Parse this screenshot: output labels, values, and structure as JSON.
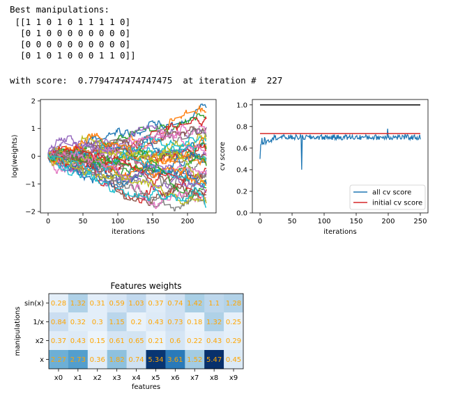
{
  "output": {
    "heading": "Best manipulations:",
    "matrix_lines": [
      " [[1 1 0 1 0 1 1 1 1 0]",
      "  [0 1 0 0 0 0 0 0 0 0]",
      "  [0 0 0 0 0 0 0 0 0 0]",
      "  [0 1 0 1 0 0 0 1 1 0]]"
    ],
    "score_line": "with score:  0.7794747474747475  at iteration #  227"
  },
  "chart_data": [
    {
      "type": "line",
      "xlabel": "iterations",
      "ylabel": "log(weights)",
      "xlim": [
        -11,
        241
      ],
      "ylim": [
        -2.05,
        2.05
      ],
      "xticks": [
        0,
        50,
        100,
        150,
        200
      ],
      "yticks": [
        -2,
        -1,
        0,
        1,
        2
      ],
      "ytick_labels": [
        "−2",
        "−1",
        "0",
        "1",
        "2"
      ],
      "n_points": 228,
      "series_count": 40,
      "final_values": [
        1.75,
        1.6,
        1.4,
        1.35,
        1.05,
        1.0,
        0.85,
        0.7,
        0.6,
        0.55,
        0.45,
        0.3,
        0.25,
        0.2,
        0.1,
        0.05,
        0.0,
        -0.05,
        -0.1,
        -0.15,
        -0.2,
        -0.3,
        -0.35,
        -0.45,
        -0.5,
        -0.6,
        -0.65,
        -0.75,
        -0.85,
        -0.95,
        -1.0,
        -1.05,
        -1.15,
        -1.2,
        -1.3,
        -1.4,
        -1.5,
        -1.6,
        -1.7,
        -1.85
      ],
      "colors": [
        "#1f77b4",
        "#ff7f0e",
        "#2ca02c",
        "#d62728",
        "#9467bd",
        "#8c564b",
        "#e377c2",
        "#7f7f7f",
        "#bcbd22",
        "#17becf"
      ]
    },
    {
      "type": "line",
      "xlabel": "iterations",
      "ylabel": "cv score",
      "xlim": [
        -12,
        262
      ],
      "ylim": [
        0,
        1.05
      ],
      "xticks": [
        0,
        50,
        100,
        150,
        200,
        250
      ],
      "yticks": [
        0.0,
        0.2,
        0.4,
        0.6,
        0.8,
        1.0
      ],
      "ytick_labels": [
        "0.0",
        "0.2",
        "0.4",
        "0.6",
        "0.8",
        "1.0"
      ],
      "legend_position": "bottom-right",
      "series": [
        {
          "name": "all cv score",
          "color": "#1f77b4",
          "n_points": 251,
          "start": 0.5,
          "typical": 0.7,
          "min": 0.4,
          "min_at": 65,
          "max": 0.78
        },
        {
          "name": "initial cv score",
          "color": "#d62728",
          "constant": 0.735
        }
      ],
      "reference_line": {
        "value": 1.0,
        "color": "#000000"
      }
    },
    {
      "type": "heatmap",
      "title": "Features weights",
      "xlabel": "features",
      "ylabel": "manipulations",
      "columns": [
        "x0",
        "x1",
        "x2",
        "x3",
        "x4",
        "x5",
        "x6",
        "x7",
        "x8",
        "x9"
      ],
      "rows": [
        "sin(x)",
        "1/x",
        "x2",
        "x"
      ],
      "values": [
        [
          0.28,
          1.32,
          0.31,
          0.59,
          1.03,
          0.37,
          0.74,
          1.42,
          1.1,
          1.28
        ],
        [
          0.84,
          0.32,
          0.3,
          1.15,
          0.2,
          0.43,
          0.73,
          0.18,
          1.32,
          0.25
        ],
        [
          0.37,
          0.43,
          0.15,
          0.61,
          0.65,
          0.21,
          0.6,
          0.22,
          0.43,
          0.29
        ],
        [
          2.27,
          2.73,
          0.36,
          1.82,
          0.74,
          5.34,
          3.61,
          1.52,
          5.47,
          0.45
        ]
      ],
      "colormap": "Blues",
      "vmax": 5.47,
      "annotation_color": "#ffa500"
    }
  ]
}
